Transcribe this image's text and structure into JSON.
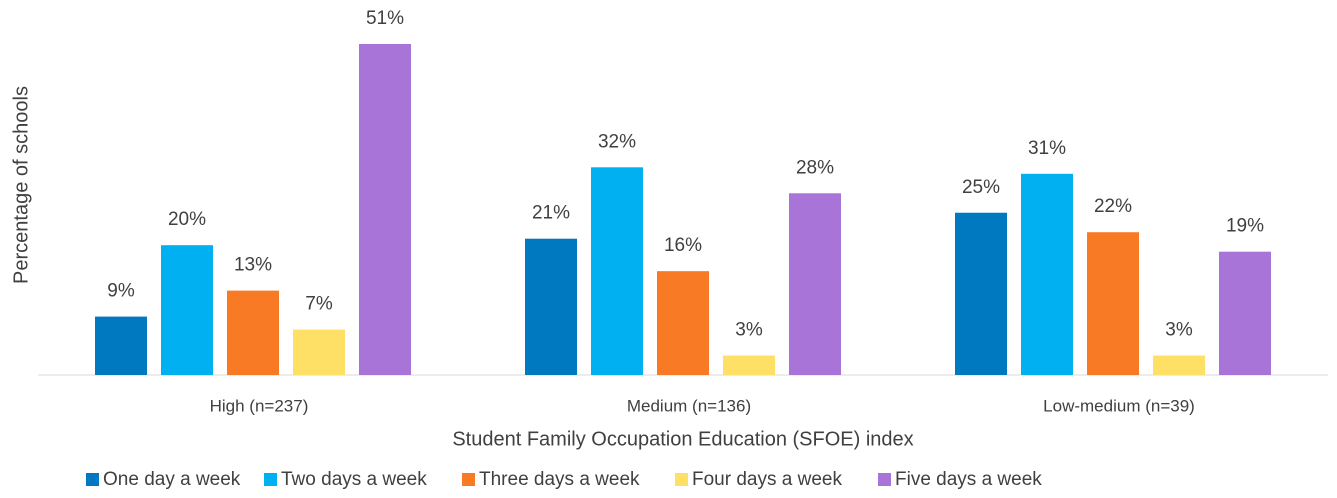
{
  "chart_data": {
    "type": "bar",
    "y_label": "Percentage of schools",
    "x_label": "Student Family Occupation Education (SFOE) index",
    "categories": [
      "High (n=237)",
      "Medium (n=136)",
      "Low-medium (n=39)"
    ],
    "series": [
      {
        "name": "One day a week",
        "color": "#0079c1",
        "values": [
          9,
          21,
          25
        ],
        "value_labels": [
          "9%",
          "21%",
          "25%"
        ]
      },
      {
        "name": "Two days a week",
        "color": "#00b0f0",
        "values": [
          20,
          32,
          31
        ],
        "value_labels": [
          "20%",
          "32%",
          "31%"
        ]
      },
      {
        "name": "Three days a week",
        "color": "#f97a25",
        "values": [
          13,
          16,
          22
        ],
        "value_labels": [
          "13%",
          "16%",
          "22%"
        ]
      },
      {
        "name": "Four days a week",
        "color": "#ffe066",
        "values": [
          7,
          3,
          3
        ],
        "value_labels": [
          "7%",
          "3%",
          "3%"
        ]
      },
      {
        "name": "Five days a week",
        "color": "#a974d8",
        "values": [
          51,
          28,
          19
        ],
        "value_labels": [
          "51%",
          "28%",
          "19%"
        ]
      }
    ],
    "legend": "bottom"
  }
}
